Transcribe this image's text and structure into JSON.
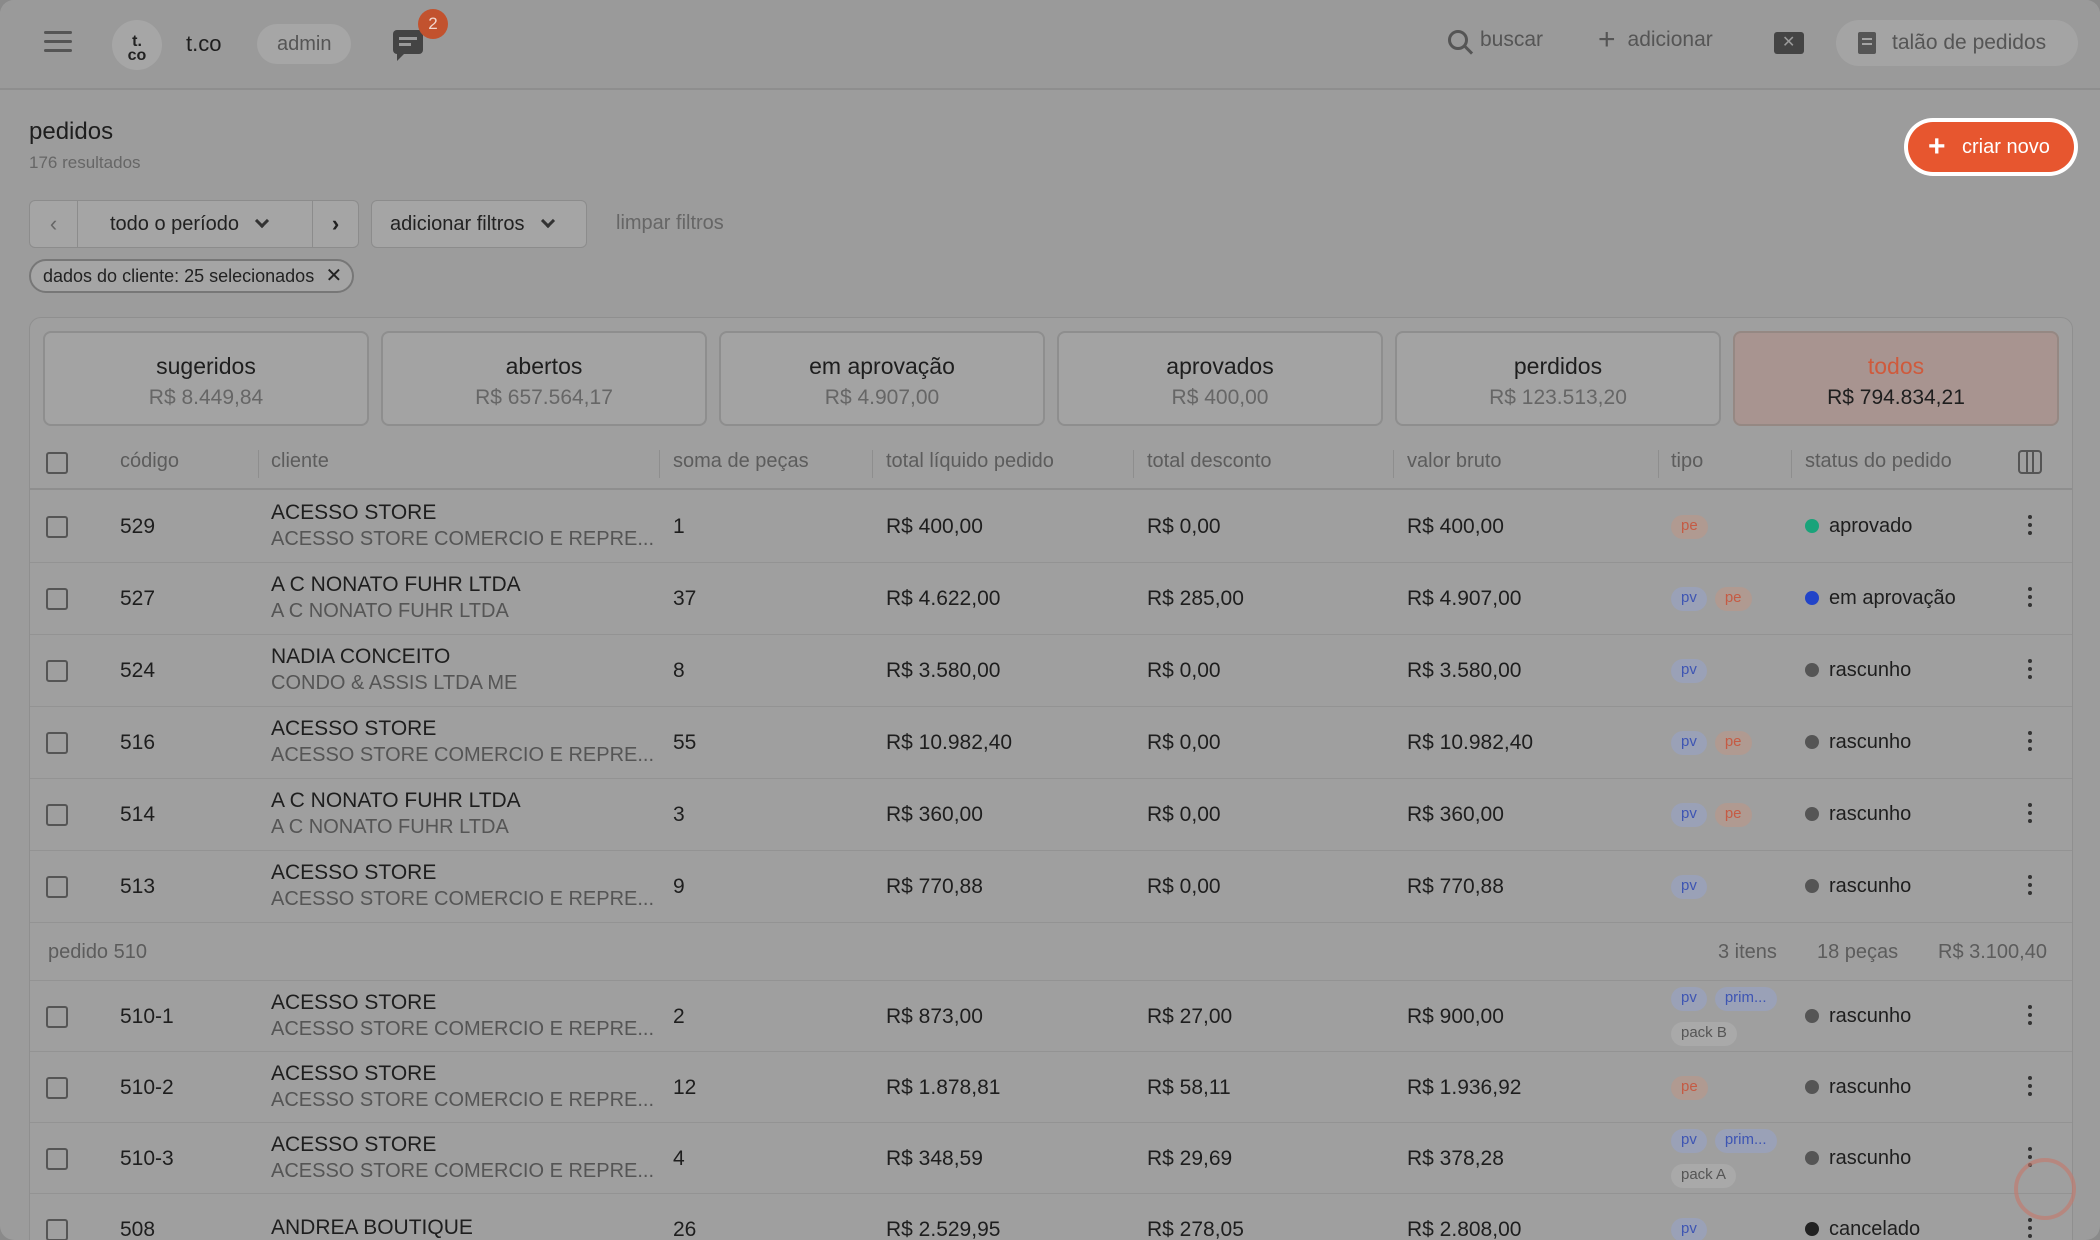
{
  "header": {
    "logo_text": "t.\nco",
    "brand": "t.co",
    "role": "admin",
    "notifications": "2",
    "search_label": "buscar",
    "add_label": "adicionar",
    "order_book_label": "talão de pedidos"
  },
  "page": {
    "title": "pedidos",
    "results": "176 resultados",
    "create_label": "criar novo"
  },
  "filters": {
    "period_label": "todo o período",
    "add_filters_label": "adicionar filtros",
    "clear_label": "limpar filtros",
    "chip_label": "dados do cliente: 25 selecionados"
  },
  "tabs": [
    {
      "name": "sugeridos",
      "value": "R$ 8.449,84"
    },
    {
      "name": "abertos",
      "value": "R$ 657.564,17"
    },
    {
      "name": "em aprovação",
      "value": "R$ 4.907,00"
    },
    {
      "name": "aprovados",
      "value": "R$ 400,00"
    },
    {
      "name": "perdidos",
      "value": "R$ 123.513,20"
    },
    {
      "name": "todos",
      "value": "R$ 794.834,21"
    }
  ],
  "columns": [
    "código",
    "cliente",
    "soma de peças",
    "total líquido pedido",
    "total desconto",
    "valor bruto",
    "tipo",
    "status do pedido"
  ],
  "rows": [
    {
      "code": "529",
      "client": "ACESSO STORE",
      "client_sub": "ACESSO STORE COMERCIO E REPRE...",
      "pieces": "1",
      "net": "R$ 400,00",
      "discount": "R$ 0,00",
      "gross": "R$ 400,00",
      "tags": [
        "pe"
      ],
      "status": "aprovado",
      "status_color": "#1aa37a"
    },
    {
      "code": "527",
      "client": "A C NONATO FUHR LTDA",
      "client_sub": "A C NONATO FUHR LTDA",
      "pieces": "37",
      "net": "R$ 4.622,00",
      "discount": "R$ 285,00",
      "gross": "R$ 4.907,00",
      "tags": [
        "pv",
        "pe"
      ],
      "status": "em aprovação",
      "status_color": "#2244c8"
    },
    {
      "code": "524",
      "client": "NADIA CONCEITO",
      "client_sub": "CONDO & ASSIS LTDA ME",
      "pieces": "8",
      "net": "R$ 3.580,00",
      "discount": "R$ 0,00",
      "gross": "R$ 3.580,00",
      "tags": [
        "pv"
      ],
      "status": "rascunho",
      "status_color": "#555555"
    },
    {
      "code": "516",
      "client": "ACESSO STORE",
      "client_sub": "ACESSO STORE COMERCIO E REPRE...",
      "pieces": "55",
      "net": "R$ 10.982,40",
      "discount": "R$ 0,00",
      "gross": "R$ 10.982,40",
      "tags": [
        "pv",
        "pe"
      ],
      "status": "rascunho",
      "status_color": "#555555"
    },
    {
      "code": "514",
      "client": "A C NONATO FUHR LTDA",
      "client_sub": "A C NONATO FUHR LTDA",
      "pieces": "3",
      "net": "R$ 360,00",
      "discount": "R$ 0,00",
      "gross": "R$ 360,00",
      "tags": [
        "pv",
        "pe"
      ],
      "status": "rascunho",
      "status_color": "#555555"
    },
    {
      "code": "513",
      "client": "ACESSO STORE",
      "client_sub": "ACESSO STORE COMERCIO E REPRE...",
      "pieces": "9",
      "net": "R$ 770,88",
      "discount": "R$ 0,00",
      "gross": "R$ 770,88",
      "tags": [
        "pv"
      ],
      "status": "rascunho",
      "status_color": "#555555"
    }
  ],
  "group": {
    "label": "pedido 510",
    "items": "3 itens",
    "pieces": "18 peças",
    "total": "R$ 3.100,40"
  },
  "group_rows": [
    {
      "code": "510-1",
      "client": "ACESSO STORE",
      "client_sub": "ACESSO STORE COMERCIO E REPRE...",
      "pieces": "2",
      "net": "R$ 873,00",
      "discount": "R$ 27,00",
      "gross": "R$ 900,00",
      "tags": [
        "pv",
        "prim..."
      ],
      "tag2": "pack B",
      "status": "rascunho",
      "status_color": "#555555"
    },
    {
      "code": "510-2",
      "client": "ACESSO STORE",
      "client_sub": "ACESSO STORE COMERCIO E REPRE...",
      "pieces": "12",
      "net": "R$ 1.878,81",
      "discount": "R$ 58,11",
      "gross": "R$ 1.936,92",
      "tags": [
        "pe"
      ],
      "tag2": "",
      "status": "rascunho",
      "status_color": "#555555"
    },
    {
      "code": "510-3",
      "client": "ACESSO STORE",
      "client_sub": "ACESSO STORE COMERCIO E REPRE...",
      "pieces": "4",
      "net": "R$ 348,59",
      "discount": "R$ 29,69",
      "gross": "R$ 378,28",
      "tags": [
        "pv",
        "prim..."
      ],
      "tag2": "pack A",
      "status": "rascunho",
      "status_color": "#555555"
    }
  ],
  "last_row": {
    "code": "508",
    "client": "ANDREA BOUTIQUE",
    "pieces": "26",
    "net": "R$ 2.529,95",
    "discount": "R$ 278,05",
    "gross": "R$ 2.808,00",
    "tags": [
      "pv"
    ],
    "status": "cancelado",
    "status_color": "#222222"
  }
}
